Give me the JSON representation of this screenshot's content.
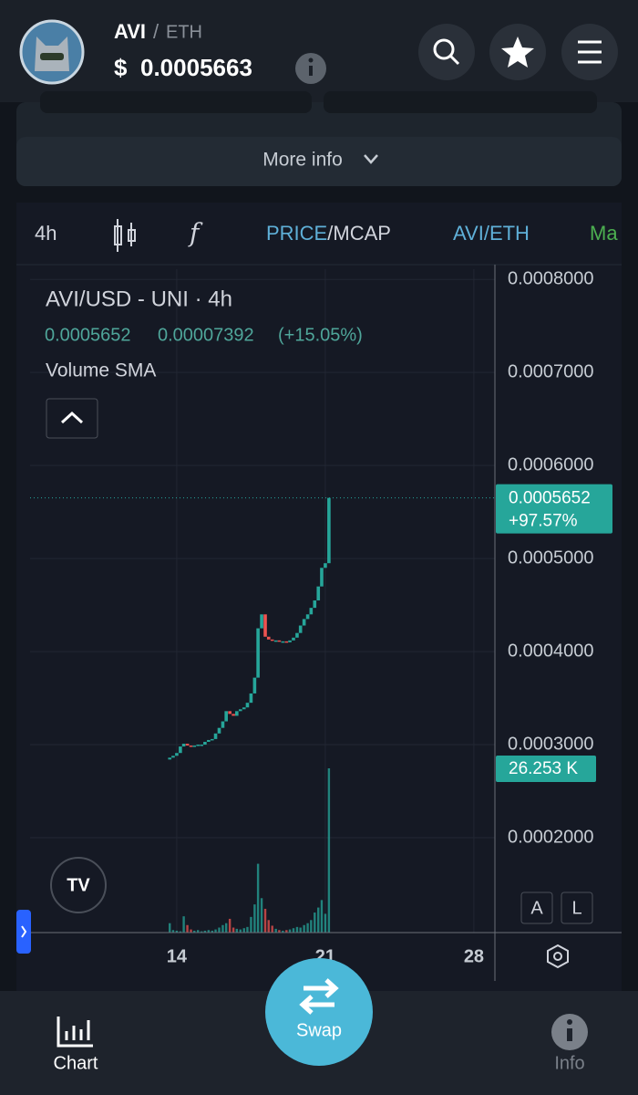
{
  "header": {
    "symbol": "AVI",
    "separator": "/",
    "quote": "ETH",
    "currency": "$",
    "price": "0.0005663"
  },
  "more_info": "More info",
  "toolbar": {
    "interval": "4h",
    "price": "PRICE",
    "mcap": "/MCAP",
    "pair": "AVI/ETH",
    "more": "Ma"
  },
  "chart_data": {
    "type": "candlestick",
    "title": "AVI/USD - UNI · 4h",
    "legend_values": [
      "0.0005652",
      "0.00007392",
      "(+15.05%)"
    ],
    "indicator": "Volume SMA",
    "x": [
      13.67,
      13.83,
      14,
      14.17,
      14.33,
      14.5,
      14.67,
      14.83,
      15,
      15.17,
      15.33,
      15.5,
      15.67,
      15.83,
      16,
      16.17,
      16.33,
      16.5,
      16.67,
      16.83,
      17,
      17.17,
      17.33,
      17.5,
      17.67,
      17.83,
      18,
      18.17,
      18.33,
      18.5,
      18.67,
      18.83,
      19,
      19.17,
      19.33,
      19.5,
      19.67,
      19.83,
      20,
      20.17,
      20.33,
      20.5,
      20.67,
      20.83,
      21,
      21.17
    ],
    "open": [
      0.000284,
      0.000286,
      0.000288,
      0.000291,
      0.000298,
      0.000301,
      0.000299,
      0.000298,
      0.000299,
      0.0003,
      0.0003,
      0.000303,
      0.000305,
      0.000306,
      0.000312,
      0.000318,
      0.000325,
      0.000336,
      0.000333,
      0.000331,
      0.000336,
      0.000338,
      0.00034,
      0.000345,
      0.000355,
      0.000372,
      0.000425,
      0.00044,
      0.000416,
      0.000413,
      0.000412,
      0.000412,
      0.000411,
      0.000411,
      0.00041,
      0.000412,
      0.000415,
      0.00042,
      0.000428,
      0.000435,
      0.00044,
      0.000447,
      0.000455,
      0.00047,
      0.00049,
      0.000495
    ],
    "close": [
      0.000286,
      0.000288,
      0.000291,
      0.000298,
      0.000301,
      0.000299,
      0.000298,
      0.000299,
      0.0003,
      0.0003,
      0.000303,
      0.000305,
      0.000306,
      0.000312,
      0.000318,
      0.000325,
      0.000336,
      0.000333,
      0.000331,
      0.000336,
      0.000338,
      0.00034,
      0.000345,
      0.000355,
      0.000372,
      0.000425,
      0.00044,
      0.000416,
      0.000413,
      0.000412,
      0.000412,
      0.000411,
      0.000411,
      0.00041,
      0.000412,
      0.000415,
      0.00042,
      0.000428,
      0.000435,
      0.00044,
      0.000447,
      0.000455,
      0.00047,
      0.00049,
      0.000495,
      0.0005652
    ],
    "volume": [
      1500,
      400,
      300,
      200,
      2600,
      1200,
      500,
      300,
      400,
      200,
      300,
      400,
      300,
      500,
      800,
      1200,
      1500,
      2200,
      800,
      600,
      500,
      700,
      900,
      2500,
      4500,
      11000,
      5500,
      3800,
      2000,
      1100,
      600,
      400,
      300,
      400,
      500,
      700,
      900,
      800,
      1200,
      1500,
      2000,
      3200,
      4000,
      5200,
      3000,
      26253
    ],
    "xlim": [
      7.09,
      28.99
    ],
    "xticks": [
      14,
      21,
      28
    ],
    "ylim": [
      9.8e-05,
      0.000811
    ],
    "yticks": [
      {
        "value": 0.0002,
        "label": "0.0002000"
      },
      {
        "value": 0.0003,
        "label": "0.0003000"
      },
      {
        "value": 0.0004,
        "label": "0.0004000"
      },
      {
        "value": 0.0005,
        "label": "0.0005000"
      },
      {
        "value": 0.0006,
        "label": "0.0006000"
      },
      {
        "value": 0.0007,
        "label": "0.0007000"
      },
      {
        "value": 0.0008,
        "label": "0.0008000"
      }
    ],
    "last_price_label": "0.0005652",
    "change_label": "+97.57%",
    "volume_label": "26.253 K",
    "up_color": "#26a69a",
    "down_color": "#ef5350",
    "grid": true,
    "scale_buttons": [
      "A",
      "L"
    ]
  },
  "nav": {
    "chart": "Chart",
    "swap": "Swap",
    "info": "Info"
  }
}
